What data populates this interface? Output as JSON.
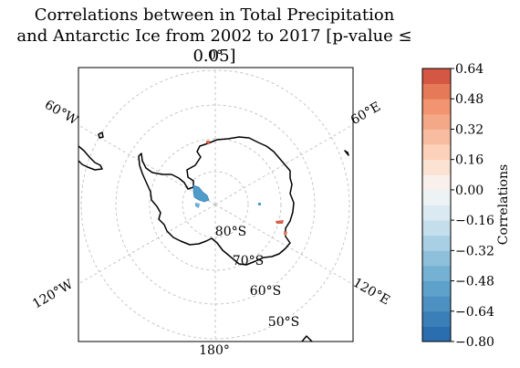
{
  "title_line1": "Correlations between in Total Precipitation",
  "title_line2": "and Antarctic Ice from 2002 to 2017 [p-value ≤ 0.05]",
  "map": {
    "projection": "south-polar-stereographic",
    "meridian_labels": {
      "top": "0°",
      "top_right": "60°E",
      "bottom_right": "120°E",
      "bottom": "180°",
      "bottom_left": "120°W",
      "top_left": "60°W"
    },
    "parallel_labels": [
      "80°S",
      "70°S",
      "60°S",
      "50°S"
    ],
    "coastline_color": "#000000",
    "grid_color": "#b0b0b0",
    "negative_cluster_color": "#4f9bc9",
    "positive_cluster_color": "#d9604a"
  },
  "colorbar": {
    "label": "Correlations",
    "ticks": [
      "0.64",
      "0.48",
      "0.32",
      "0.16",
      "0.00",
      "−0.16",
      "−0.32",
      "−0.48",
      "−0.64",
      "−0.80"
    ],
    "min": -0.8,
    "max": 0.64,
    "step": 0.08,
    "colormap": "RdBu_r"
  }
}
